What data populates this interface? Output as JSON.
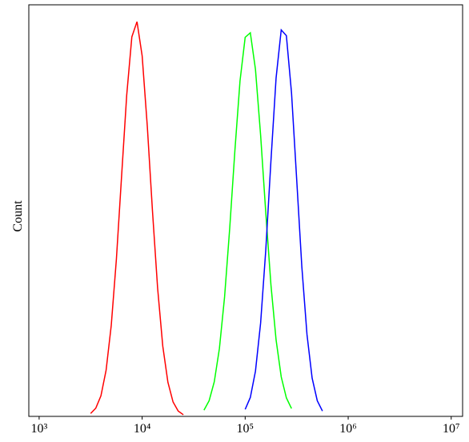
{
  "chart_data": {
    "type": "line",
    "ylabel": "Count",
    "xscale": "log",
    "xlim": [
      794,
      12900000
    ],
    "ylim": [
      0,
      100
    ],
    "xticks": [
      {
        "value": 1000,
        "label": "10³"
      },
      {
        "value": 10000,
        "label": "10⁴"
      },
      {
        "value": 100000,
        "label": "10⁵"
      },
      {
        "value": 1000000,
        "label": "10⁶"
      },
      {
        "value": 10000000,
        "label": "10⁷"
      }
    ],
    "series": [
      {
        "color": "#ff0000",
        "x": [
          3162,
          3548,
          3981,
          4467,
          5012,
          5623,
          6310,
          7079,
          7943,
          8913,
          10000,
          11220,
          12589,
          14125,
          15849,
          17783,
          19953,
          22387,
          25119
        ],
        "values": [
          0.7,
          2.0,
          5.0,
          11.2,
          22.1,
          38.2,
          58.2,
          78.0,
          92.2,
          95.9,
          87.6,
          70.5,
          50.0,
          31.2,
          17.1,
          8.3,
          3.5,
          1.3,
          0.4
        ]
      },
      {
        "color": "#00ff00",
        "x": [
          39811,
          44668,
          50119,
          56234,
          63096,
          70795,
          79433,
          89125,
          100000,
          112202,
          125893,
          141254,
          158489,
          177828,
          199526,
          223872,
          251189,
          281838
        ],
        "values": [
          1.5,
          3.8,
          8.4,
          16.5,
          29.0,
          45.7,
          64.5,
          81.5,
          92.1,
          93.2,
          84.3,
          68.3,
          49.5,
          32.0,
          18.6,
          9.6,
          4.5,
          1.9
        ]
      },
      {
        "color": "#0000ff",
        "x": [
          100000,
          112202,
          125893,
          141254,
          158489,
          177828,
          199526,
          223872,
          251189,
          281838,
          316228,
          354813,
          398107,
          446684,
          501187,
          562341
        ],
        "values": [
          1.7,
          4.6,
          11.0,
          22.7,
          40.4,
          62.0,
          82.2,
          93.9,
          92.5,
          78.6,
          57.6,
          36.4,
          19.9,
          9.3,
          3.8,
          1.3
        ]
      }
    ]
  }
}
